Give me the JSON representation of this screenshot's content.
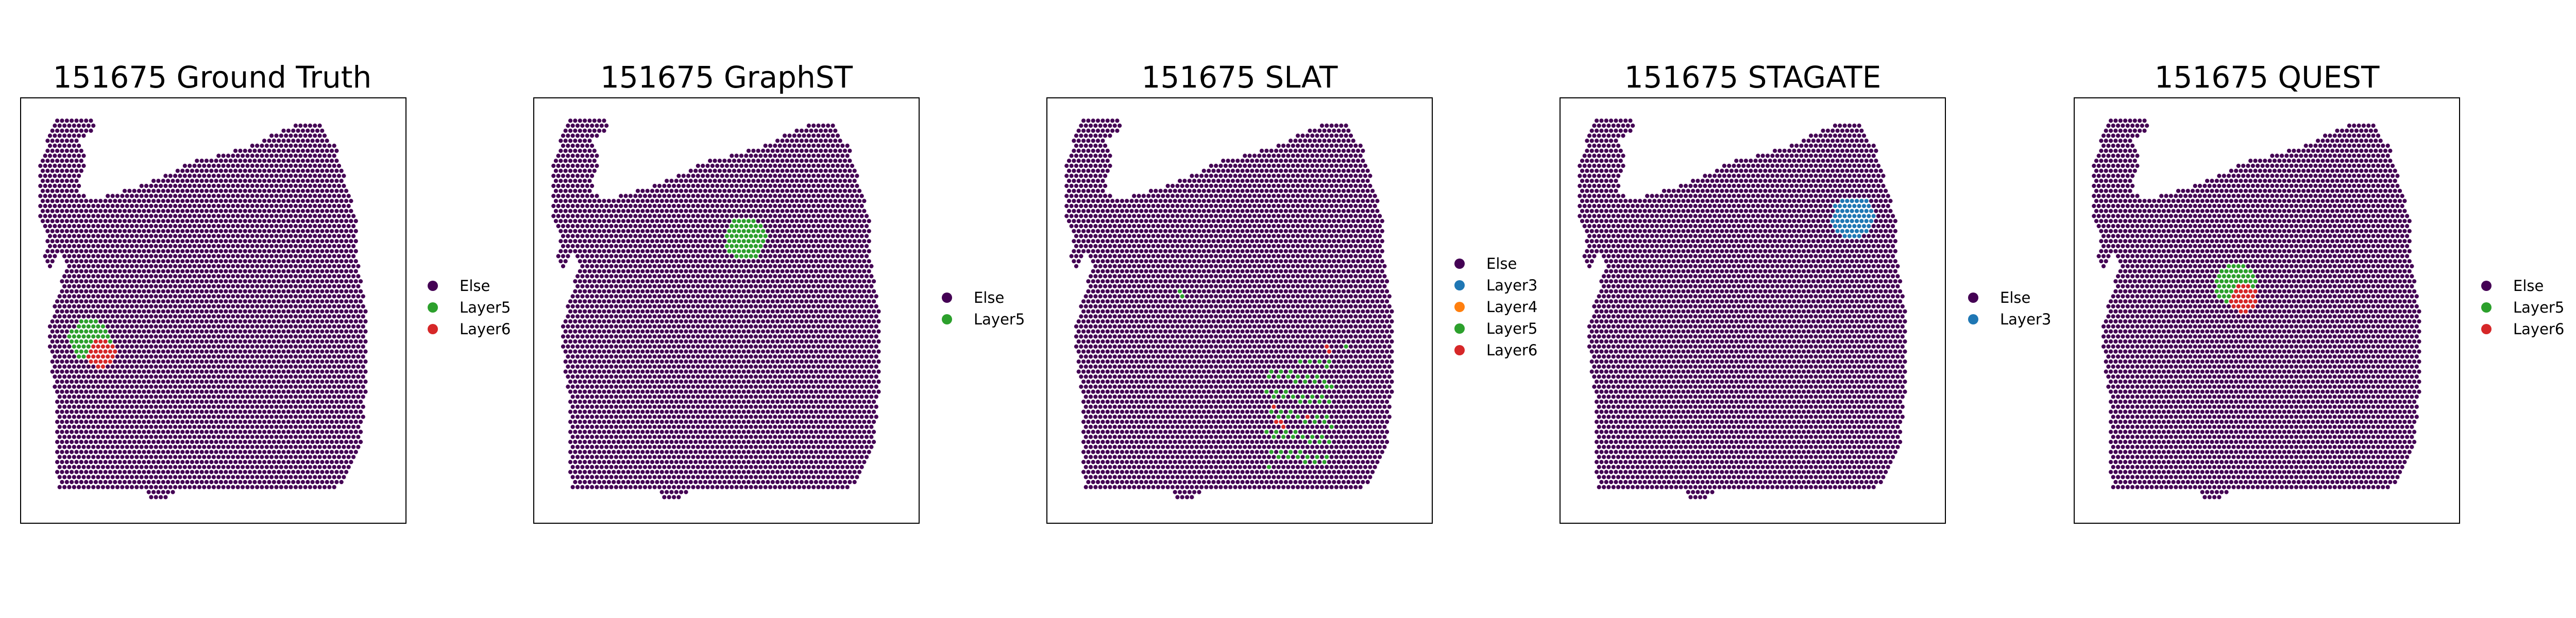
{
  "colors": {
    "Else": "#440154",
    "Layer3": "#1f77b4",
    "Layer4": "#ff7f0e",
    "Layer5": "#2ca02c",
    "Layer6": "#d62728",
    "spot_edge": "#ffffff",
    "frame": "#000000"
  },
  "chart_data": [
    {
      "type": "scatter",
      "title": "151675 Ground Truth",
      "legend": [
        "Else",
        "Layer5",
        "Layer6"
      ],
      "regions": [
        {
          "label": "Layer5",
          "kind": "disk",
          "center": [
            0.18,
            0.57
          ],
          "radius": 0.045
        },
        {
          "label": "Layer6",
          "kind": "disk",
          "center": [
            0.21,
            0.6
          ],
          "radius": 0.03
        }
      ]
    },
    {
      "type": "scatter",
      "title": "151675 GraphST",
      "legend": [
        "Else",
        "Layer5"
      ],
      "regions": [
        {
          "label": "Layer5",
          "kind": "disk",
          "center": [
            0.55,
            0.33
          ],
          "radius": 0.045
        }
      ]
    },
    {
      "type": "scatter",
      "title": "151675 SLAT",
      "legend": [
        "Else",
        "Layer3",
        "Layer4",
        "Layer5",
        "Layer6"
      ],
      "regions": [
        {
          "label": "Layer5",
          "kind": "streaks",
          "center": [
            0.62,
            0.79
          ]
        },
        {
          "label": "Layer6",
          "kind": "points",
          "pts": [
            [
              0.59,
              0.73
            ],
            [
              0.6,
              0.76
            ],
            [
              0.61,
              0.77
            ],
            [
              0.68,
              0.75
            ],
            [
              0.73,
              0.59
            ]
          ]
        },
        {
          "label": "Layer5",
          "kind": "points",
          "pts": [
            [
              0.35,
              0.46
            ],
            [
              0.78,
              0.58
            ],
            [
              0.73,
              0.68
            ]
          ]
        },
        {
          "label": "Layer3",
          "kind": "points",
          "pts": []
        },
        {
          "label": "Layer4",
          "kind": "points",
          "pts": []
        }
      ]
    },
    {
      "type": "scatter",
      "title": "151675 STAGATE",
      "legend": [
        "Else",
        "Layer3"
      ],
      "regions": [
        {
          "label": "Layer3",
          "kind": "disk",
          "center": [
            0.76,
            0.28
          ],
          "radius": 0.045
        }
      ]
    },
    {
      "type": "scatter",
      "title": "151675 QUEST",
      "legend": [
        "Else",
        "Layer5",
        "Layer6"
      ],
      "regions": [
        {
          "label": "Layer5",
          "kind": "disk",
          "center": [
            0.42,
            0.44
          ],
          "radius": 0.045
        },
        {
          "label": "Layer6",
          "kind": "disk",
          "center": [
            0.44,
            0.47
          ],
          "radius": 0.03
        }
      ]
    }
  ]
}
